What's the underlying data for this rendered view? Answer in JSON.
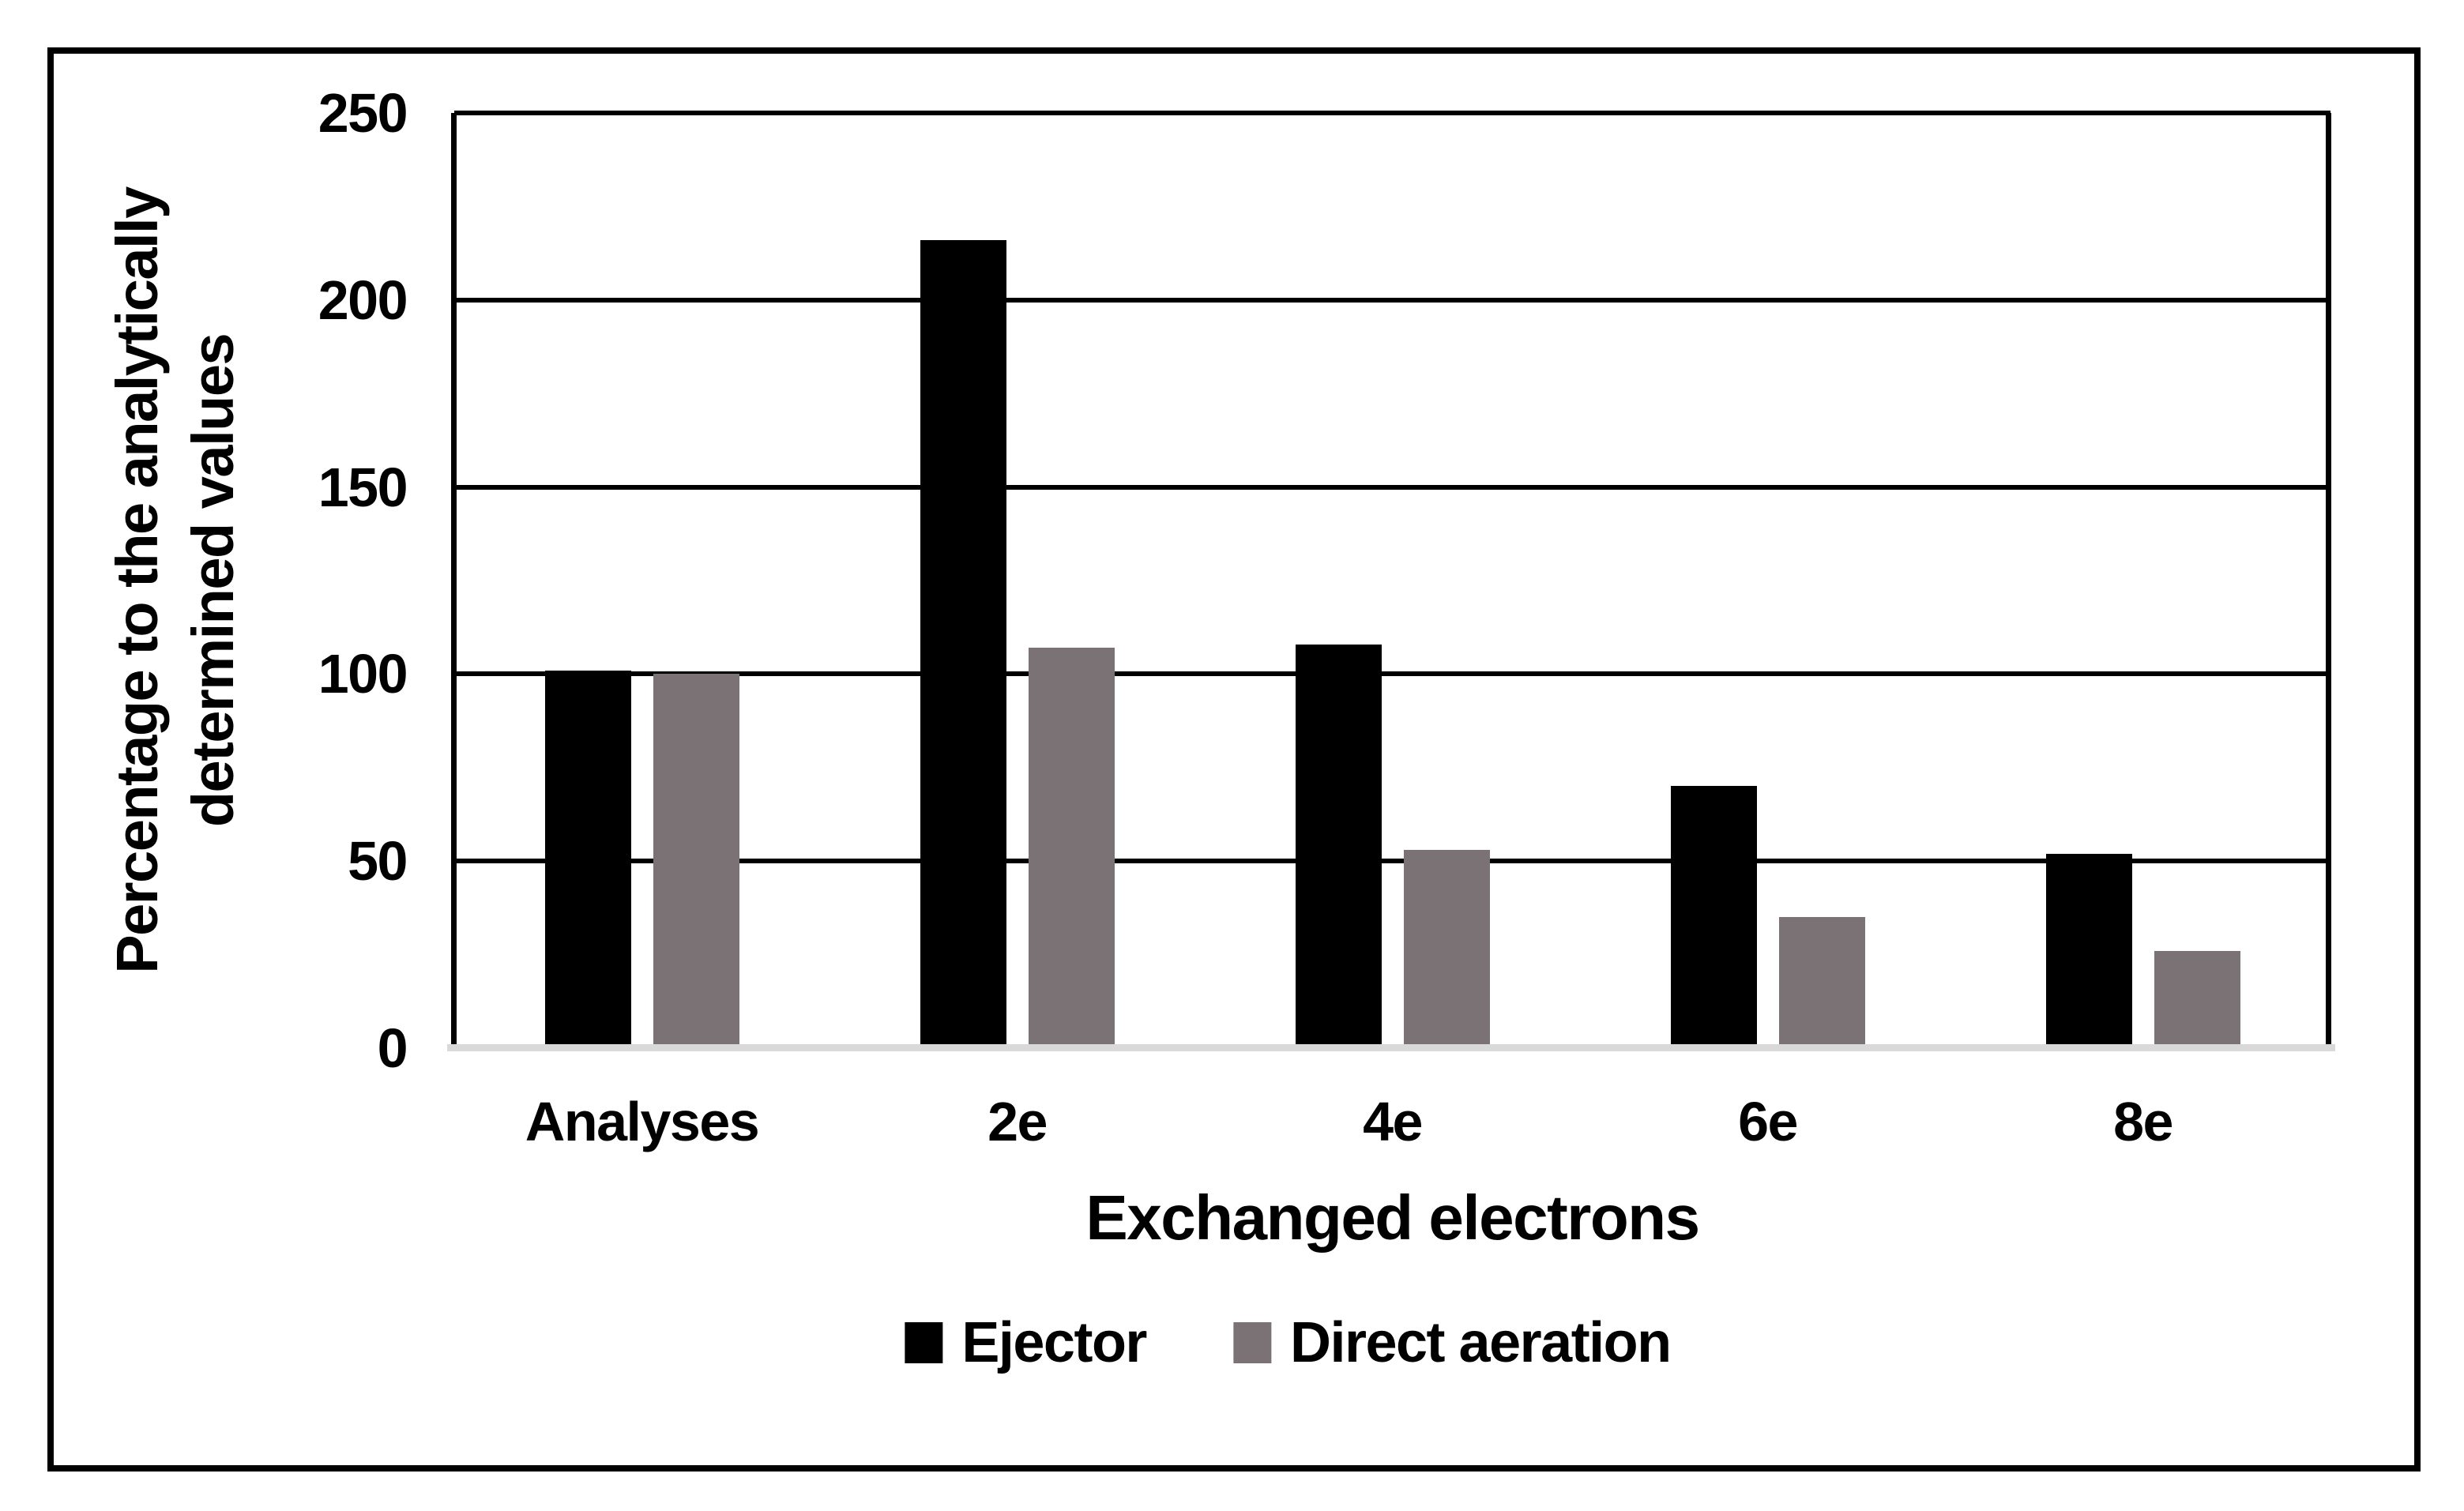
{
  "chart_data": {
    "type": "bar",
    "categories": [
      "Analyses",
      "2e",
      "4e",
      "6e",
      "8e"
    ],
    "series": [
      {
        "name": "Ejector",
        "color": "#000000",
        "values": [
          101,
          216,
          108,
          70,
          52
        ]
      },
      {
        "name": "Direct aeration",
        "color": "#7a7275",
        "values": [
          100,
          107,
          53,
          35,
          26
        ]
      }
    ],
    "xlabel": "Exchanged electrons",
    "ylabel_lines": [
      "Percentage to the analytically",
      "determined values"
    ],
    "ylim": [
      0,
      250
    ],
    "yticks": [
      0,
      50,
      100,
      150,
      200,
      250
    ],
    "grid": true,
    "legend_position": "bottom",
    "colors": {
      "gridline": "#000000",
      "baseline": "#d9d9d9",
      "plot_border": "#000000",
      "figure_border": "#000000",
      "background": "#ffffff"
    }
  }
}
